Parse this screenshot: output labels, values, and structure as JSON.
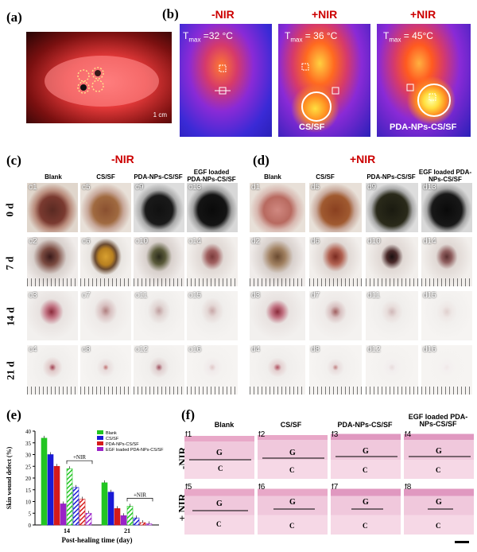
{
  "panel_a": {
    "label": "(a)",
    "scale": "1 cm"
  },
  "panel_b": {
    "label": "(b)",
    "images": [
      {
        "title": "-NIR",
        "tmax": "T",
        "tmax_sub": "max",
        "tmax_val": " =32 °C",
        "caption": ""
      },
      {
        "title": "+NIR",
        "tmax": "T",
        "tmax_sub": "max",
        "tmax_val": " = 36 °C",
        "caption": "CS/SF"
      },
      {
        "title": "+NIR",
        "tmax": "T",
        "tmax_sub": "max",
        "tmax_val": " = 45°C",
        "caption": "PDA-NPs-CS/SF"
      }
    ]
  },
  "panel_c": {
    "label": "(c)",
    "title": "-NIR",
    "columns": [
      "Blank",
      "CS/SF",
      "PDA-NPs-CS/SF",
      "EGF loaded PDA-NPs-CS/SF"
    ],
    "rows": [
      "0 d",
      "7 d",
      "14 d",
      "21 d"
    ],
    "tags": [
      [
        "c1",
        "c5",
        "c9",
        "c13"
      ],
      [
        "c2",
        "c6",
        "c10",
        "c14"
      ],
      [
        "c3",
        "c7",
        "c11",
        "c15"
      ],
      [
        "c4",
        "c8",
        "c12",
        "c16"
      ]
    ]
  },
  "panel_d": {
    "label": "(d)",
    "title": "+NIR",
    "columns": [
      "Blank",
      "CS/SF",
      "PDA-NPs-CS/SF",
      "EGF loaded PDA-NPs-CS/SF"
    ],
    "tags": [
      [
        "d1",
        "d5",
        "d9",
        "d13"
      ],
      [
        "d2",
        "d6",
        "d10",
        "d14"
      ],
      [
        "d3",
        "d7",
        "d11",
        "d15"
      ],
      [
        "d4",
        "d8",
        "d12",
        "d16"
      ]
    ]
  },
  "panel_e": {
    "label": "(e)"
  },
  "panel_f": {
    "label": "(f)",
    "columns": [
      "Blank",
      "CS/SF",
      "PDA-NPs-CS/SF",
      "EGF loaded PDA-NPs-CS/SF"
    ],
    "rows": [
      "-NIR",
      "+ NIR"
    ],
    "tags": [
      [
        "f1",
        "f2",
        "f3",
        "f4"
      ],
      [
        "f5",
        "f6",
        "f7",
        "f8"
      ]
    ],
    "g": "G",
    "c": "C"
  },
  "chart_data": {
    "type": "bar",
    "categories": [
      "14",
      "21"
    ],
    "series": [
      {
        "name": "Blank",
        "color": "#22c522",
        "values": [
          37,
          18
        ]
      },
      {
        "name": "CS/SF",
        "color": "#1a1ad6",
        "values": [
          30,
          14
        ]
      },
      {
        "name": "PDA-NPs-CS/SF",
        "color": "#d61a1a",
        "values": [
          25,
          7
        ]
      },
      {
        "name": "EGF loaded PDA-NPs-CS/SF",
        "color": "#9a22c8",
        "values": [
          9,
          4
        ]
      },
      {
        "name": "",
        "color": "#22c522",
        "values": [
          24,
          8
        ],
        "hatched": true
      },
      {
        "name": "",
        "color": "#1a1ad6",
        "values": [
          16,
          3
        ],
        "hatched": true
      },
      {
        "name": "",
        "color": "#d61a1a",
        "values": [
          11,
          1
        ],
        "hatched": true
      },
      {
        "name": "",
        "color": "#9a22c8",
        "values": [
          5,
          0.5
        ],
        "hatched": true
      }
    ],
    "annotations": [
      "+NIR",
      "+NIR"
    ],
    "xlabel": "Post-healing time  (day)",
    "ylabel": "Skin wound defect (%)",
    "yticks": [
      "0",
      "5",
      "10",
      "15",
      "20",
      "25",
      "30",
      "35",
      "40"
    ],
    "ylim": [
      0,
      40
    ]
  }
}
